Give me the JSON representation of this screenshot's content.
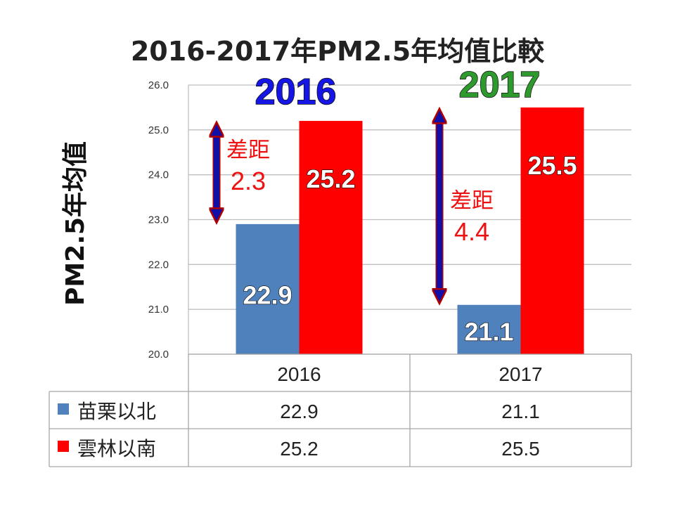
{
  "chart_data": {
    "type": "bar",
    "title": "2016-2017年PM2.5年均值比較",
    "ylabel": "PM2.5年均值",
    "xlabel": "",
    "ylim": [
      20.0,
      26.0
    ],
    "yticks": [
      "20.0",
      "21.0",
      "22.0",
      "23.0",
      "24.0",
      "25.0",
      "26.0"
    ],
    "categories": [
      "2016",
      "2017"
    ],
    "series": [
      {
        "name": "苗栗以北",
        "values": [
          22.9,
          21.1
        ],
        "color": "#4f81bd"
      },
      {
        "name": "雲林以南",
        "values": [
          25.2,
          25.5
        ],
        "color": "#ff0000"
      }
    ],
    "data_labels": [
      [
        "22.9",
        "25.2"
      ],
      [
        "21.1",
        "25.5"
      ]
    ],
    "annotations": [
      {
        "year_label": "2016",
        "year_color": "#1515e6",
        "gap_label": "差距",
        "gap_value": "2.3"
      },
      {
        "year_label": "2017",
        "year_color": "#2e9a2e",
        "gap_label": "差距",
        "gap_value": "4.4"
      }
    ],
    "table": {
      "header": [
        "2016",
        "2017"
      ],
      "rows": [
        {
          "name": "苗栗以北",
          "values": [
            "22.9",
            "21.1"
          ]
        },
        {
          "name": "雲林以南",
          "values": [
            "25.2",
            "25.5"
          ]
        }
      ]
    },
    "grid": true,
    "legend": "data-table"
  }
}
